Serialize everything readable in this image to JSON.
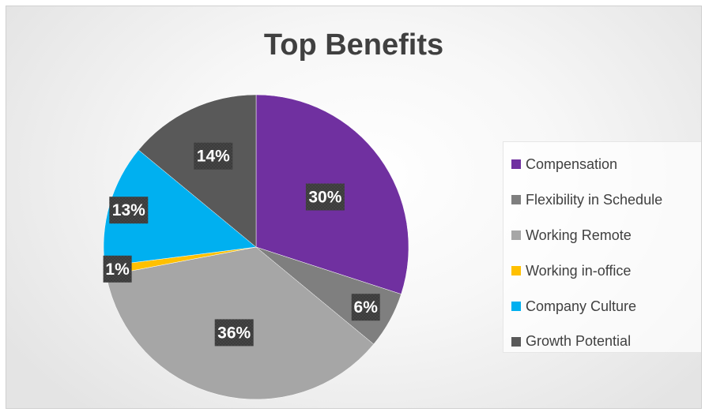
{
  "chart_data": {
    "type": "pie",
    "title": "Top Benefits",
    "legend_position": "right",
    "categories": [
      "Compensation",
      "Flexibility in Schedule",
      "Working Remote",
      "Working in-office",
      "Company Culture",
      "Growth Potential"
    ],
    "values": [
      30,
      6,
      36,
      1,
      13,
      14
    ],
    "data_labels": [
      "30%",
      "6%",
      "36%",
      "1%",
      "13%",
      "14%"
    ],
    "colors": [
      "#7030a0",
      "#7f7f7f",
      "#a6a6a6",
      "#ffc000",
      "#00b0f0",
      "#595959"
    ]
  }
}
